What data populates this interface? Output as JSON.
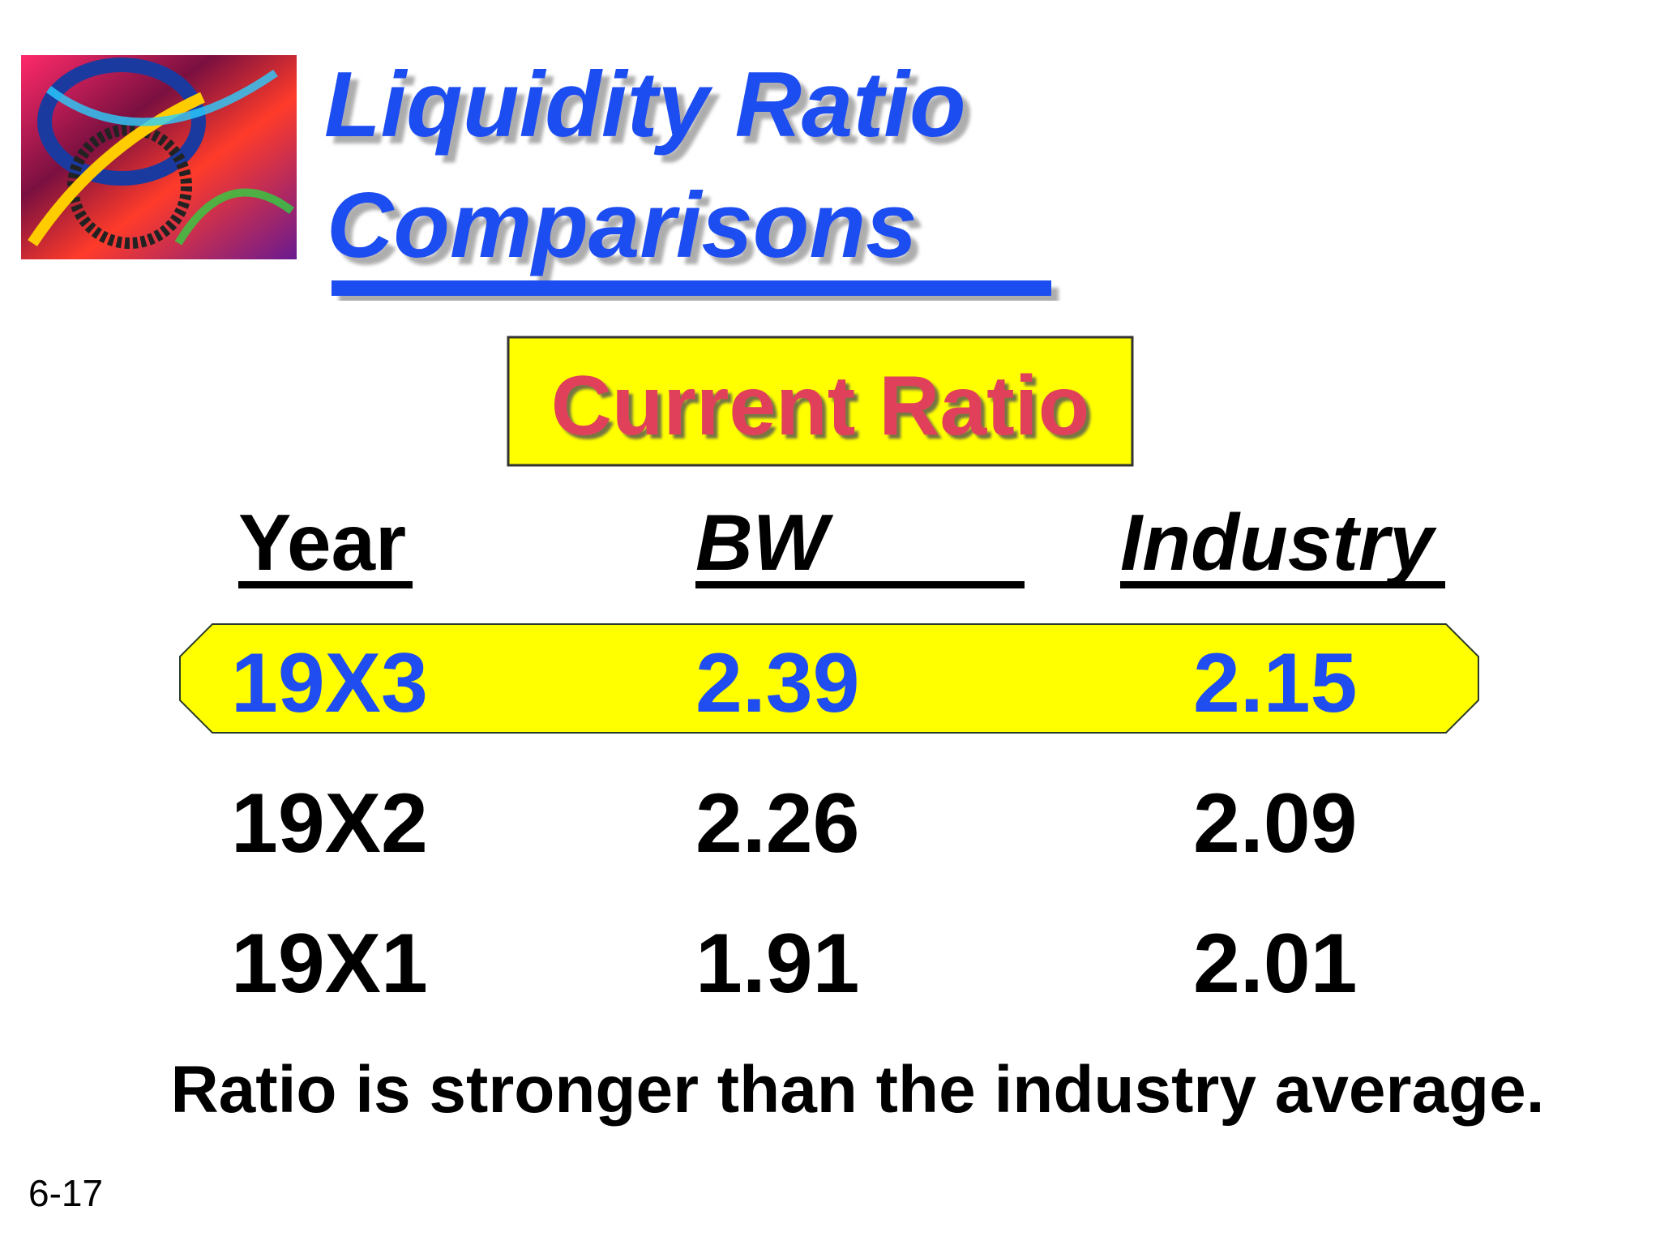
{
  "header": {
    "title_lines": [
      "Liquidity Ratio",
      "Comparisons"
    ],
    "subtitle": "Current Ratio"
  },
  "table": {
    "columns": [
      "Year",
      "BW",
      "Industry"
    ],
    "rows": [
      [
        "19X3",
        "2.39",
        "2.15"
      ],
      [
        "19X2",
        "2.26",
        "2.09"
      ],
      [
        "19X1",
        "1.91",
        "2.01"
      ]
    ]
  },
  "conclusion": "Ratio is stronger than the industry average.",
  "slide_number": "6-17"
}
